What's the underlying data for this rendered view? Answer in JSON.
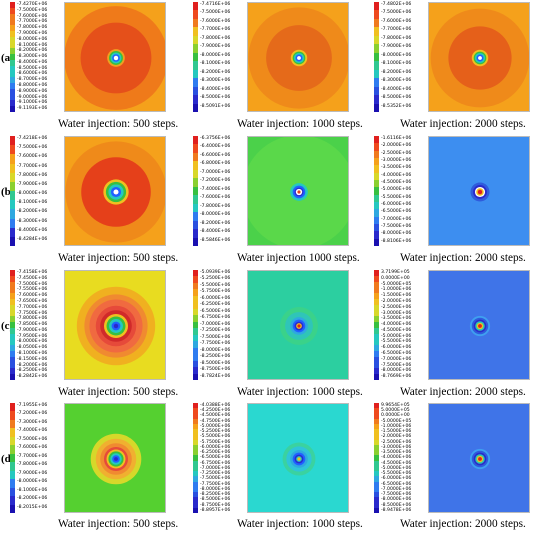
{
  "rows": [
    {
      "label": "(a)",
      "caption": [
        "Water injection: 500 steps.",
        "Water injection: 1000 steps.",
        "Water injection: 2000 steps."
      ],
      "panels": [
        {
          "ticks": [
            "-7.4270E+06",
            "-7.5000E+06",
            "-7.6000E+06",
            "-7.7000E+06",
            "-7.8000E+06",
            "-7.9000E+06",
            "-8.0000E+06",
            "-8.1000E+06",
            "-8.2000E+06",
            "-8.3000E+06",
            "-8.4000E+06",
            "-8.5000E+06",
            "-8.6000E+06",
            "-8.7000E+06",
            "-8.8000E+06",
            "-8.9000E+06",
            "-9.0000E+06",
            "-9.1000E+06",
            "-9.1193E+06"
          ],
          "bg": "#f5a11b",
          "rings": [
            {
              "r": 0.82,
              "c": "#ef7a1a"
            },
            {
              "r": 0.56,
              "c": "#e5501a"
            },
            {
              "r": 0.14,
              "c": "#f0a020"
            },
            {
              "r": 0.11,
              "c": "#37c040"
            },
            {
              "r": 0.085,
              "c": "#25c8c0"
            },
            {
              "r": 0.06,
              "c": "#2060ff"
            },
            {
              "r": 0.035,
              "c": "#ffffff"
            }
          ]
        },
        {
          "ticks": [
            "-7.4716E+06",
            "-7.5000E+06",
            "-7.6000E+06",
            "-7.7000E+06",
            "-7.8000E+06",
            "-7.9000E+06",
            "-8.0000E+06",
            "-8.1000E+06",
            "-8.2000E+06",
            "-8.3000E+06",
            "-8.4000E+06",
            "-8.5000E+06",
            "-8.5091E+06"
          ],
          "bg": "#f5a11b",
          "rings": [
            {
              "r": 0.8,
              "c": "#ef8a1a"
            },
            {
              "r": 0.52,
              "c": "#e56a1a"
            },
            {
              "r": 0.13,
              "c": "#f0c020"
            },
            {
              "r": 0.1,
              "c": "#37c040"
            },
            {
              "r": 0.08,
              "c": "#25c8c0"
            },
            {
              "r": 0.055,
              "c": "#2060ff"
            },
            {
              "r": 0.03,
              "c": "#ffffff"
            }
          ]
        },
        {
          "ticks": [
            "-7.4802E+06",
            "-7.5000E+06",
            "-7.6000E+06",
            "-7.7000E+06",
            "-7.8000E+06",
            "-7.9000E+06",
            "-8.0000E+06",
            "-8.1000E+06",
            "-8.2000E+06",
            "-8.3000E+06",
            "-8.4000E+06",
            "-8.5000E+06",
            "-8.5352E+06"
          ],
          "bg": "#f5a11b",
          "rings": [
            {
              "r": 0.78,
              "c": "#ef8a1a"
            },
            {
              "r": 0.5,
              "c": "#e5601a"
            },
            {
              "r": 0.13,
              "c": "#f0c020"
            },
            {
              "r": 0.1,
              "c": "#37c040"
            },
            {
              "r": 0.08,
              "c": "#25c8c0"
            },
            {
              "r": 0.055,
              "c": "#2060ff"
            },
            {
              "r": 0.03,
              "c": "#ffffff"
            }
          ]
        }
      ]
    },
    {
      "label": "(b)",
      "caption": [
        "Water injection: 500 steps.",
        "Water injection 1000 steps.",
        "Water injection: 2000 steps."
      ],
      "panels": [
        {
          "ticks": [
            "-7.4218E+06",
            "-7.5000E+06",
            "-7.6000E+06",
            "-7.7000E+06",
            "-7.8000E+06",
            "-7.9000E+06",
            "-8.0000E+06",
            "-8.1000E+06",
            "-8.2000E+06",
            "-8.3000E+06",
            "-8.4000E+06",
            "-8.4284E+06"
          ],
          "bg": "#f5a11b",
          "rings": [
            {
              "r": 0.8,
              "c": "#ef8a1a"
            },
            {
              "r": 0.55,
              "c": "#e5401a"
            },
            {
              "r": 0.2,
              "c": "#f0c020"
            },
            {
              "r": 0.16,
              "c": "#37c040"
            },
            {
              "r": 0.12,
              "c": "#25c8c0"
            },
            {
              "r": 0.08,
              "c": "#2060ff"
            },
            {
              "r": 0.04,
              "c": "#ffffff"
            }
          ]
        },
        {
          "ticks": [
            "-6.3756E+06",
            "-6.4000E+06",
            "-6.6000E+06",
            "-6.8000E+06",
            "-7.0000E+06",
            "-7.2000E+06",
            "-7.4000E+06",
            "-7.6000E+06",
            "-7.8000E+06",
            "-8.0000E+06",
            "-8.2000E+06",
            "-8.4000E+06",
            "-8.5846E+06"
          ],
          "bg": "#4bd14a",
          "rings": [
            {
              "r": 0.9,
              "c": "#5ad84a"
            },
            {
              "r": 0.14,
              "c": "#25c8c0"
            },
            {
              "r": 0.1,
              "c": "#2060ff"
            },
            {
              "r": 0.07,
              "c": "#2a2acc"
            },
            {
              "r": 0.05,
              "c": "#ffffff"
            },
            {
              "r": 0.025,
              "c": "#e04020"
            }
          ]
        },
        {
          "ticks": [
            "-1.6116E+06",
            "-2.0000E+06",
            "-2.5000E+06",
            "-3.0000E+06",
            "-3.5000E+06",
            "-4.0000E+06",
            "-4.5000E+06",
            "-5.0000E+06",
            "-5.5000E+06",
            "-6.0000E+06",
            "-6.5000E+06",
            "-7.0000E+06",
            "-7.5000E+06",
            "-8.0000E+06",
            "-8.8106E+06"
          ],
          "bg": "#3d8ef0",
          "rings": [
            {
              "r": 0.15,
              "c": "#2f5bdc"
            },
            {
              "r": 0.11,
              "c": "#2a2acc"
            },
            {
              "r": 0.08,
              "c": "#ffffff"
            },
            {
              "r": 0.06,
              "c": "#f0c020"
            },
            {
              "r": 0.035,
              "c": "#e02020"
            }
          ]
        }
      ]
    },
    {
      "label": "(c)",
      "caption": [
        "Water injection: 500 steps.",
        "Water injection: 1000 steps.",
        "Water injection: 2000 steps."
      ],
      "panels": [
        {
          "ticks": [
            "-7.4158E+06",
            "-7.4500E+06",
            "-7.5000E+06",
            "-7.5500E+06",
            "-7.6000E+06",
            "-7.6500E+06",
            "-7.7000E+06",
            "-7.7500E+06",
            "-7.8000E+06",
            "-7.8500E+06",
            "-7.9000E+06",
            "-7.9500E+06",
            "-8.0000E+06",
            "-8.0500E+06",
            "-8.1000E+06",
            "-8.1500E+06",
            "-8.2000E+06",
            "-8.2500E+06",
            "-8.2842E+06"
          ],
          "bg": "#e8dc20",
          "rings": [
            {
              "r": 0.62,
              "c": "#f0b020"
            },
            {
              "r": 0.5,
              "c": "#f08a30"
            },
            {
              "r": 0.42,
              "c": "#f06a40"
            },
            {
              "r": 0.32,
              "c": "#e64a3a"
            },
            {
              "r": 0.25,
              "c": "#d02a2a"
            },
            {
              "r": 0.19,
              "c": "#f0c020"
            },
            {
              "r": 0.15,
              "c": "#37c040"
            },
            {
              "r": 0.11,
              "c": "#25c8c0"
            },
            {
              "r": 0.07,
              "c": "#2060ff"
            },
            {
              "r": 0.035,
              "c": "#2a2acc"
            }
          ]
        },
        {
          "ticks": [
            "-5.0939E+06",
            "-5.2500E+06",
            "-5.5000E+06",
            "-5.7500E+06",
            "-6.0000E+06",
            "-6.2500E+06",
            "-6.5000E+06",
            "-6.7500E+06",
            "-7.0000E+06",
            "-7.2500E+06",
            "-7.5000E+06",
            "-7.7500E+06",
            "-8.0000E+06",
            "-8.2500E+06",
            "-8.5000E+06",
            "-8.7500E+06",
            "-8.7824E+06"
          ],
          "bg": "#2ccfa0",
          "rings": [
            {
              "r": 0.3,
              "c": "#3ad28a"
            },
            {
              "r": 0.22,
              "c": "#2fc5b8"
            },
            {
              "r": 0.14,
              "c": "#2fa8e0"
            },
            {
              "r": 0.1,
              "c": "#2060ff"
            },
            {
              "r": 0.07,
              "c": "#2a2acc"
            },
            {
              "r": 0.045,
              "c": "#f0c020"
            },
            {
              "r": 0.025,
              "c": "#e02020"
            }
          ]
        },
        {
          "ticks": [
            "3.7199E+05",
            "0.0000E+00",
            "-5.0000E+05",
            "-1.0000E+06",
            "-1.5000E+06",
            "-2.0000E+06",
            "-2.5000E+06",
            "-3.0000E+06",
            "-3.5000E+06",
            "-4.0000E+06",
            "-4.5000E+06",
            "-5.0000E+06",
            "-5.5000E+06",
            "-6.0000E+06",
            "-6.5000E+06",
            "-7.0000E+06",
            "-7.5000E+06",
            "-8.0000E+06",
            "-8.7669E+06"
          ],
          "bg": "#3f74e8",
          "rings": [
            {
              "r": 0.16,
              "c": "#3fa0f0"
            },
            {
              "r": 0.13,
              "c": "#2f5bdc"
            },
            {
              "r": 0.1,
              "c": "#2a2acc"
            },
            {
              "r": 0.075,
              "c": "#30c8b0"
            },
            {
              "r": 0.05,
              "c": "#f0c020"
            },
            {
              "r": 0.03,
              "c": "#e02020"
            }
          ]
        }
      ]
    },
    {
      "label": "(d)",
      "caption": [
        "Water injection: 500 steps.",
        "Water injection: 1000 steps.",
        "Water injection: 2000 steps."
      ],
      "panels": [
        {
          "ticks": [
            "-7.1955E+06",
            "-7.2000E+06",
            "-7.3000E+06",
            "-7.4000E+06",
            "-7.5000E+06",
            "-7.6000E+06",
            "-7.7000E+06",
            "-7.8000E+06",
            "-7.9000E+06",
            "-8.0000E+06",
            "-8.1000E+06",
            "-8.2000E+06",
            "-8.2015E+06"
          ],
          "bg": "#55d030",
          "rings": [
            {
              "r": 0.4,
              "c": "#d6d82a"
            },
            {
              "r": 0.32,
              "c": "#f0b030"
            },
            {
              "r": 0.25,
              "c": "#f08a30"
            },
            {
              "r": 0.19,
              "c": "#e64a3a"
            },
            {
              "r": 0.15,
              "c": "#f0c020"
            },
            {
              "r": 0.12,
              "c": "#37c040"
            },
            {
              "r": 0.09,
              "c": "#25c8c0"
            },
            {
              "r": 0.06,
              "c": "#2060ff"
            },
            {
              "r": 0.03,
              "c": "#2a2acc"
            }
          ]
        },
        {
          "ticks": [
            "-4.0388E+06",
            "-4.2500E+06",
            "-4.5000E+06",
            "-4.7500E+06",
            "-5.0000E+06",
            "-5.2500E+06",
            "-5.5000E+06",
            "-5.7500E+06",
            "-6.0000E+06",
            "-6.2500E+06",
            "-6.5000E+06",
            "-6.7500E+06",
            "-7.0000E+06",
            "-7.2500E+06",
            "-7.5000E+06",
            "-7.7500E+06",
            "-8.0000E+06",
            "-8.2500E+06",
            "-8.5000E+06",
            "-8.7500E+06",
            "-8.8957E+06"
          ],
          "bg": "#2ad8d0",
          "rings": [
            {
              "r": 0.26,
              "c": "#3ad2a0"
            },
            {
              "r": 0.2,
              "c": "#2fc5d8"
            },
            {
              "r": 0.14,
              "c": "#2fa8e0"
            },
            {
              "r": 0.1,
              "c": "#2060ff"
            },
            {
              "r": 0.07,
              "c": "#2a2acc"
            },
            {
              "r": 0.045,
              "c": "#25c8c0"
            },
            {
              "r": 0.025,
              "c": "#f0c020"
            }
          ]
        },
        {
          "ticks": [
            "9.9654E+05",
            "5.0000E+05",
            "0.0000E+00",
            "-5.0000E+05",
            "-1.0000E+06",
            "-1.5000E+06",
            "-2.0000E+06",
            "-2.5000E+06",
            "-3.0000E+06",
            "-3.5000E+06",
            "-4.0000E+06",
            "-4.5000E+06",
            "-5.0000E+06",
            "-5.5000E+06",
            "-6.0000E+06",
            "-6.5000E+06",
            "-7.0000E+06",
            "-7.5000E+06",
            "-8.0000E+06",
            "-8.5000E+06",
            "-8.9478E+06"
          ],
          "bg": "#3f74e8",
          "rings": [
            {
              "r": 0.16,
              "c": "#3fa0f0"
            },
            {
              "r": 0.13,
              "c": "#2f5bdc"
            },
            {
              "r": 0.1,
              "c": "#2a2acc"
            },
            {
              "r": 0.075,
              "c": "#30c8b0"
            },
            {
              "r": 0.05,
              "c": "#f0c020"
            },
            {
              "r": 0.03,
              "c": "#e02020"
            }
          ]
        }
      ]
    }
  ],
  "colormap": [
    "#e0201e",
    "#ef4a1e",
    "#f07a1e",
    "#f5a11b",
    "#f0c020",
    "#d8d82a",
    "#8ad030",
    "#37c040",
    "#30c890",
    "#25c8c0",
    "#2fa8e0",
    "#2f7cf0",
    "#2a50e0",
    "#2a2acc",
    "#1a10b0"
  ]
}
